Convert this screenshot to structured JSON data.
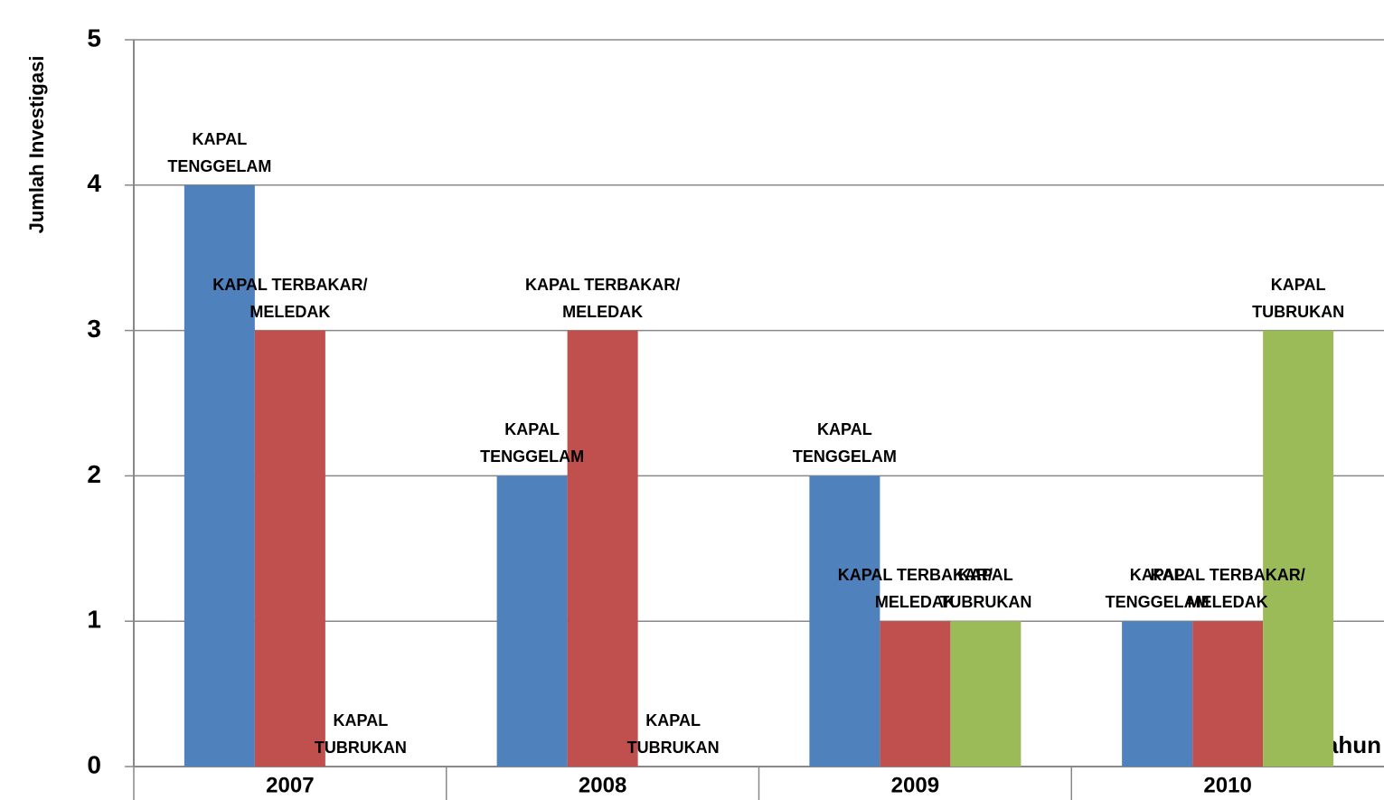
{
  "chart_data": {
    "type": "bar",
    "y_label": "Jumlah Investigasi",
    "x_label": "Tahun",
    "categories": [
      "2007",
      "2008",
      "2009",
      "2010"
    ],
    "series": [
      {
        "name": "KAPAL TENGGELAM",
        "color": "#4f81bd",
        "values": [
          4,
          2,
          2,
          1
        ]
      },
      {
        "name": "KAPAL TERBAKAR/ MELEDAK",
        "color": "#c0504d",
        "values": [
          3,
          3,
          1,
          1
        ]
      },
      {
        "name": "KAPAL TUBRUKAN",
        "color": "#9bbb59",
        "values": [
          0,
          0,
          1,
          3
        ]
      }
    ],
    "ylim": [
      0,
      5
    ],
    "yticks": [
      0,
      1,
      2,
      3,
      4,
      5
    ],
    "grid": true
  }
}
